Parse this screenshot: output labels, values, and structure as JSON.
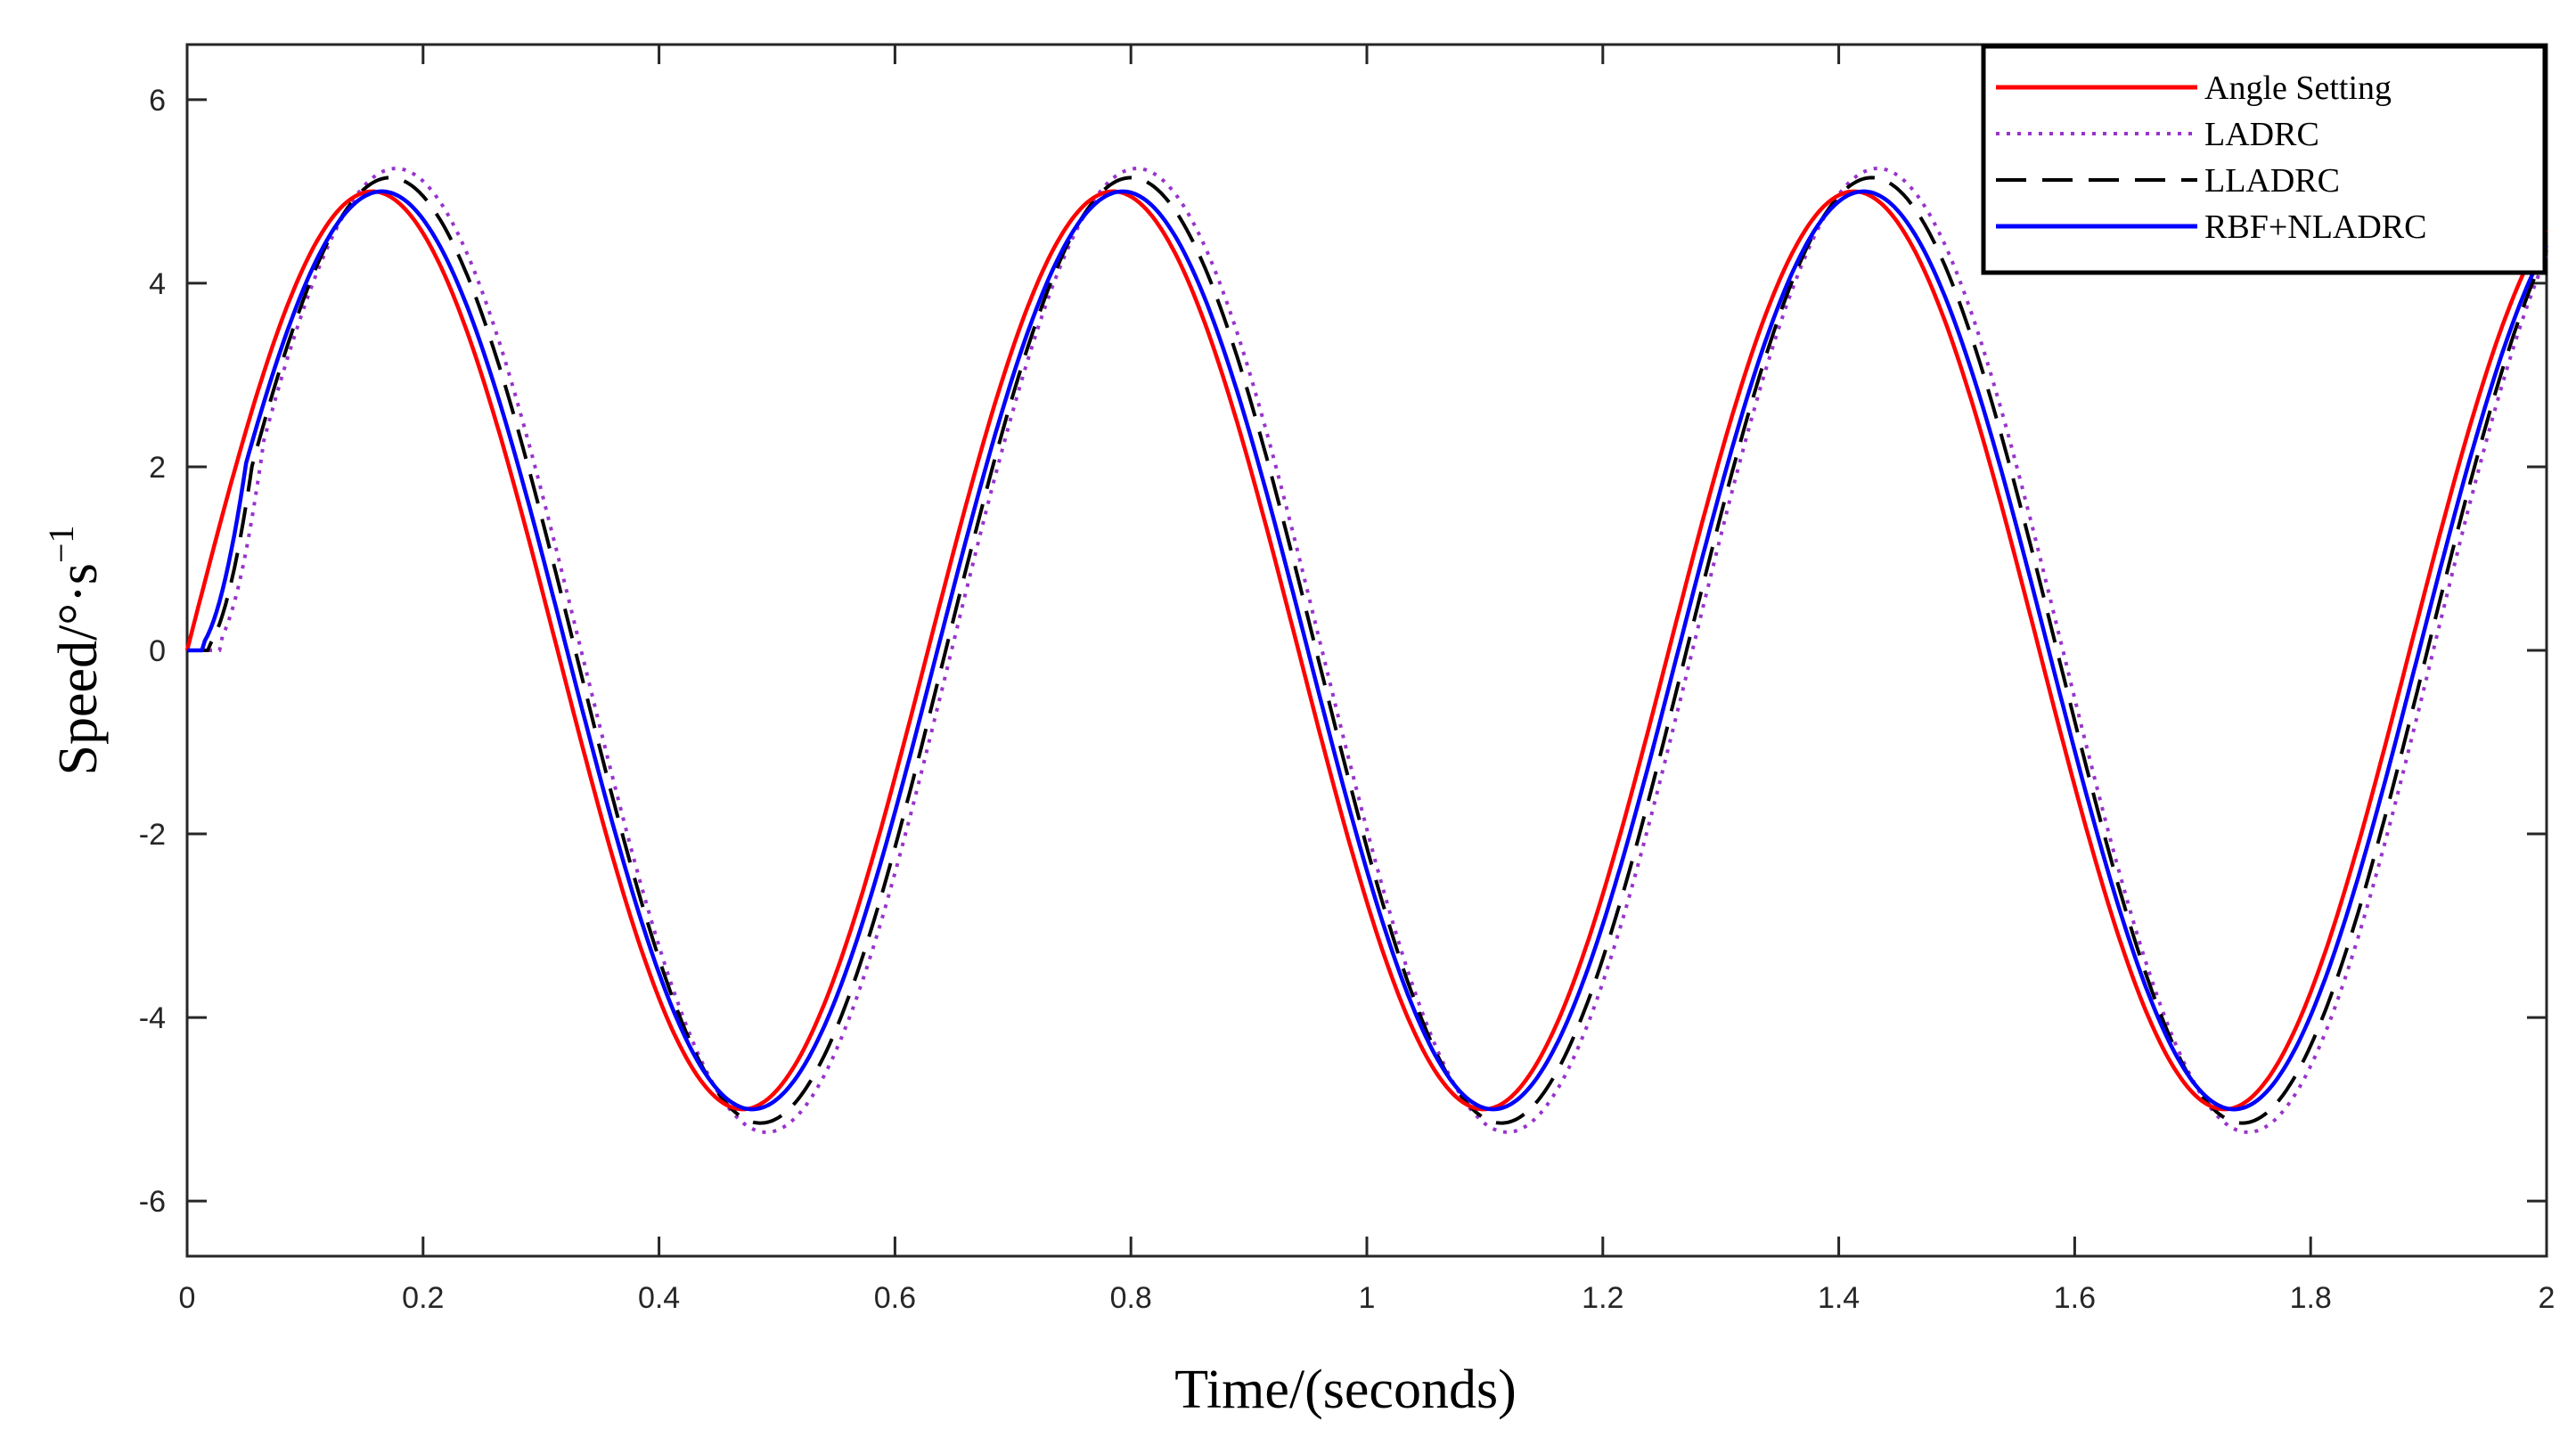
{
  "chart_data": {
    "type": "line",
    "title": "",
    "xlabel": "Time/(seconds)",
    "ylabel": "Speed/°·s",
    "ylabel_superscript": "−1",
    "xlim": [
      0,
      2
    ],
    "ylim": [
      -6.6,
      6.6
    ],
    "grid": false,
    "legend_position": "top-right",
    "x_ticks": [
      0,
      0.2,
      0.4,
      0.6,
      0.8,
      1,
      1.2,
      1.4,
      1.6,
      1.8,
      2
    ],
    "x_tick_labels": [
      "0",
      "0.2",
      "0.4",
      "0.6",
      "0.8",
      "1",
      "1.2",
      "1.4",
      "1.6",
      "1.8",
      "2"
    ],
    "y_ticks": [
      -6,
      -4,
      -2,
      0,
      2,
      4,
      6
    ],
    "y_tick_labels": [
      "-6",
      "-4",
      "-2",
      "0",
      "2",
      "4",
      "6"
    ],
    "series": [
      {
        "name": "Angle Setting",
        "color": "#ff0000",
        "line_style": "solid",
        "amplitude": 5,
        "period": 0.628,
        "phase_delay": 0,
        "start_lag": 0,
        "peaks": [
          [
            0.157,
            5.0
          ],
          [
            0.785,
            5.0
          ],
          [
            1.413,
            5.0
          ]
        ],
        "troughs": [
          [
            0.471,
            -5.0
          ],
          [
            1.099,
            -5.0
          ],
          [
            1.727,
            -5.0
          ]
        ]
      },
      {
        "name": "LADRC",
        "color": "#9933cc",
        "line_style": "dotted",
        "amplitude": 5.25,
        "period": 0.628,
        "phase_delay": 0.02,
        "start_lag": 0.03,
        "peaks": [
          [
            0.18,
            5.25
          ],
          [
            0.81,
            5.25
          ],
          [
            1.44,
            5.25
          ]
        ],
        "troughs": [
          [
            0.49,
            -5.25
          ],
          [
            1.12,
            -5.25
          ],
          [
            1.75,
            -5.25
          ]
        ]
      },
      {
        "name": "LLADRC",
        "color": "#000000",
        "line_style": "dashed",
        "amplitude": 5.15,
        "period": 0.628,
        "phase_delay": 0.015,
        "start_lag": 0.02,
        "peaks": [
          [
            0.175,
            5.15
          ],
          [
            0.8,
            5.15
          ],
          [
            1.43,
            5.15
          ]
        ],
        "troughs": [
          [
            0.485,
            -5.2
          ],
          [
            1.115,
            -5.2
          ],
          [
            1.745,
            -5.2
          ]
        ]
      },
      {
        "name": "RBF+NLADRC",
        "color": "#0000ff",
        "line_style": "solid",
        "amplitude": 5,
        "period": 0.628,
        "phase_delay": 0.008,
        "start_lag": 0.015,
        "peaks": [
          [
            0.165,
            5.0
          ],
          [
            0.79,
            5.0
          ],
          [
            1.42,
            5.0
          ]
        ],
        "troughs": [
          [
            0.48,
            -5.0
          ],
          [
            1.11,
            -5.0
          ],
          [
            1.735,
            -5.0
          ]
        ]
      }
    ]
  }
}
